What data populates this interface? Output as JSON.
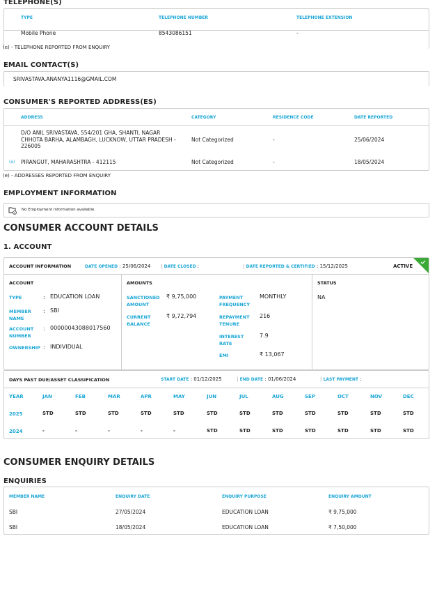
{
  "telephone": {
    "title": "TELEPHONE(S)",
    "headers": [
      "TYPE",
      "TELEPHONE NUMBER",
      "TELEPHONE EXTENSION"
    ],
    "row": [
      "Mobile Phone",
      "8543086151",
      "-"
    ],
    "note": "(e) - TELEPHONE REPORTED FROM ENQUIRY"
  },
  "email": {
    "title": "EMAIL CONTACT(S)",
    "value": "SRIVASTAVA.ANANYA1116@GMAIL.COM"
  },
  "address": {
    "title": "CONSUMER'S REPORTED ADDRESS(ES)",
    "headers": [
      "ADDRESS",
      "CATEGORY",
      "RESIDENCE CODE",
      "DATE REPORTED"
    ],
    "rows": [
      {
        "flag": "",
        "address": "D/O ANIL SRIVASTAVA, 554/201 GHA, SHANTI, NAGAR CHHOTA BARHA, ALAMBAGH, LUCKNOW, UTTAR PRADESH - 226005",
        "category": "Not Categorized",
        "code": "-",
        "date": "25/06/2024"
      },
      {
        "flag": "(e)",
        "address": "PIRANGUT, MAHARASHTRA - 412115",
        "category": "Not Categorized",
        "code": "-",
        "date": "18/05/2024"
      }
    ],
    "note": "(e) - ADDRESSES REPORTED FROM ENQUIRY"
  },
  "employment": {
    "title": "EMPLOYMENT INFORMATION",
    "message": "No Employment Information available.",
    "icon": "folder-info-icon"
  },
  "account_details": {
    "title": "CONSUMER ACCOUNT DETAILS",
    "subtitle": "1. ACCOUNT",
    "info_label": "ACCOUNT INFORMATION",
    "date_opened_label": "DATE OPENED",
    "date_opened": ": 25/06/2024",
    "date_closed_label": "DATE CLOSED",
    "date_closed": ":",
    "date_reported_label": "DATE REPORTED & CERTIFIED",
    "date_reported": ": 15/12/2025",
    "status_badge": "ACTIVE",
    "badge_color": "#3aa935",
    "account": {
      "title": "ACCOUNT",
      "fields": [
        {
          "label": "TYPE",
          "value": "EDUCATION LOAN"
        },
        {
          "label": "MEMBER NAME",
          "value": "SBI"
        },
        {
          "label": "ACCOUNT NUMBER",
          "value": "00000043088017560"
        },
        {
          "label": "OWNERSHIP",
          "value": "INDIVIDUAL"
        }
      ]
    },
    "amounts": {
      "title": "AMOUNTS",
      "left": [
        {
          "label": "SANCTIONED AMOUNT",
          "value": "₹ 9,75,000"
        },
        {
          "label": "CURRENT BALANCE",
          "value": "₹ 9,72,794"
        }
      ],
      "right": [
        {
          "label": "PAYMENT FREQUENCY",
          "value": "MONTHLY"
        },
        {
          "label": "REPAYMENT TENURE",
          "value": "216"
        },
        {
          "label": "INTEREST RATE",
          "value": "7.9"
        },
        {
          "label": "EMI",
          "value": "₹ 13,067"
        }
      ]
    },
    "status": {
      "title": "STATUS",
      "value": "NA"
    },
    "dpd": {
      "title": "DAYS PAST DUE/ASSET CLASSIFICATION",
      "start_label": "START DATE",
      "start": ": 01/12/2025",
      "end_label": "END DATE",
      "end": ": 01/06/2024",
      "last_label": "LAST PAYMENT",
      "last": ":",
      "headers": [
        "YEAR",
        "JAN",
        "FEB",
        "MAR",
        "APR",
        "MAY",
        "JUN",
        "JUL",
        "AUG",
        "SEP",
        "OCT",
        "NOV",
        "DEC"
      ],
      "rows": [
        [
          "2025",
          "STD",
          "STD",
          "STD",
          "STD",
          "STD",
          "STD",
          "STD",
          "STD",
          "STD",
          "STD",
          "STD",
          "STD"
        ],
        [
          "2024",
          "-",
          "-",
          "-",
          "-",
          "-",
          "STD",
          "STD",
          "STD",
          "STD",
          "STD",
          "STD",
          "STD"
        ]
      ]
    }
  },
  "enquiry": {
    "title": "CONSUMER ENQUIRY DETAILS",
    "subtitle": "ENQUIRIES",
    "headers": [
      "MEMBER NAME",
      "ENQUIRY DATE",
      "ENQUIRY PURPOSE",
      "ENQUIRY AMOUNT"
    ],
    "rows": [
      [
        "SBI",
        "27/05/2024",
        "EDUCATION LOAN",
        "₹ 9,75,000"
      ],
      [
        "SBI",
        "18/05/2024",
        "EDUCATION LOAN",
        "₹ 7,50,000"
      ]
    ]
  }
}
